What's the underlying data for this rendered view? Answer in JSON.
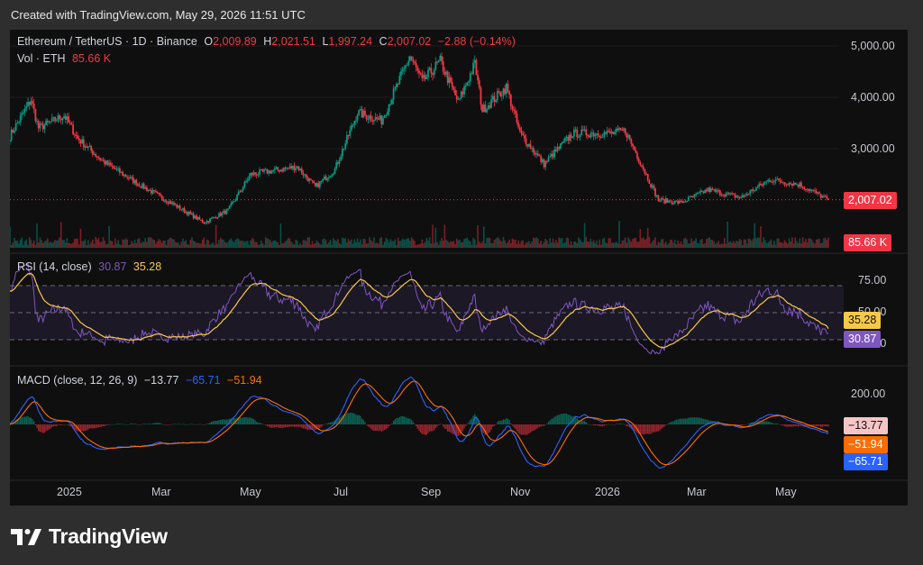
{
  "header": {
    "created": "Created with TradingView.com, May 29, 2026 11:51 UTC"
  },
  "legend": {
    "title": "Ethereum / TetherUS · 1D · Binance",
    "o_label": "O",
    "o_value": "2,009.89",
    "h_label": "H",
    "h_value": "2,021.51",
    "l_label": "L",
    "l_value": "1,997.24",
    "c_label": "C",
    "c_value": "2,007.02",
    "change": "−2.88 (−0.14%)",
    "vol_label": "Vol · ETH",
    "vol_value": "85.66 K"
  },
  "rsi_legend": {
    "label": "RSI (14, close)",
    "rsi": "30.87",
    "signal": "35.28"
  },
  "macd_legend": {
    "label": "MACD (close, 12, 26, 9)",
    "hist": "−13.77",
    "macd": "−65.71",
    "signal": "−51.94"
  },
  "price_axis": [
    "5,000.00",
    "4,000.00",
    "3,000.00"
  ],
  "rsi_axis": [
    "75.00",
    "50.00",
    "25.00"
  ],
  "macd_axis": [
    "200.00"
  ],
  "time_axis": [
    "2025",
    "Mar",
    "May",
    "Jul",
    "Sep",
    "Nov",
    "2026",
    "Mar",
    "May"
  ],
  "badges": {
    "price": "2,007.02",
    "volume": "85.66 K",
    "rsi_signal": "35.28",
    "rsi": "30.87",
    "macd_hist": "−13.77",
    "macd_signal": "−51.94",
    "macd": "−65.71"
  },
  "brand": {
    "name": "TradingView"
  },
  "colors": {
    "up": "#089981",
    "down": "#f23645",
    "rsi": "#7e57c2",
    "rsi_signal": "#f7c948",
    "macd": "#2962ff",
    "macd_signal": "#ff6d00",
    "background": "#0f0f0f"
  },
  "chart_data": {
    "type": "candlestick",
    "symbol": "ETHUSDT",
    "interval": "1D",
    "y_range": [
      1400,
      5200
    ],
    "price_path": [
      [
        "2024-12-01",
        3250
      ],
      [
        "2024-12-15",
        3950
      ],
      [
        "2024-12-20",
        3400
      ],
      [
        "2025-01-06",
        3650
      ],
      [
        "2025-01-15",
        3200
      ],
      [
        "2025-02-01",
        2750
      ],
      [
        "2025-02-25",
        2300
      ],
      [
        "2025-03-15",
        2000
      ],
      [
        "2025-04-09",
        1560
      ],
      [
        "2025-04-25",
        1800
      ],
      [
        "2025-05-10",
        2500
      ],
      [
        "2025-06-10",
        2650
      ],
      [
        "2025-06-22",
        2250
      ],
      [
        "2025-07-05",
        2600
      ],
      [
        "2025-07-20",
        3700
      ],
      [
        "2025-08-05",
        3550
      ],
      [
        "2025-08-24",
        4800
      ],
      [
        "2025-09-01",
        4300
      ],
      [
        "2025-09-13",
        4700
      ],
      [
        "2025-09-25",
        3900
      ],
      [
        "2025-10-06",
        4650
      ],
      [
        "2025-10-11",
        3750
      ],
      [
        "2025-10-27",
        4200
      ],
      [
        "2025-11-05",
        3300
      ],
      [
        "2025-11-21",
        2700
      ],
      [
        "2025-12-10",
        3300
      ],
      [
        "2026-01-06",
        3300
      ],
      [
        "2026-01-14",
        3350
      ],
      [
        "2026-02-05",
        2000
      ],
      [
        "2026-02-20",
        1950
      ],
      [
        "2026-03-10",
        2200
      ],
      [
        "2026-04-01",
        2050
      ],
      [
        "2026-04-20",
        2400
      ],
      [
        "2026-05-10",
        2300
      ],
      [
        "2026-05-29",
        2007.02
      ]
    ],
    "last_close": 2007.02,
    "volume_last": "85.66 K",
    "rsi": {
      "period": 14,
      "last": 30.87,
      "signal_last": 35.28,
      "levels": [
        75,
        50,
        25
      ]
    },
    "macd": {
      "fast": 12,
      "slow": 26,
      "signal": 9,
      "hist_last": -13.77,
      "macd_last": -65.71,
      "signal_last": -51.94
    }
  }
}
